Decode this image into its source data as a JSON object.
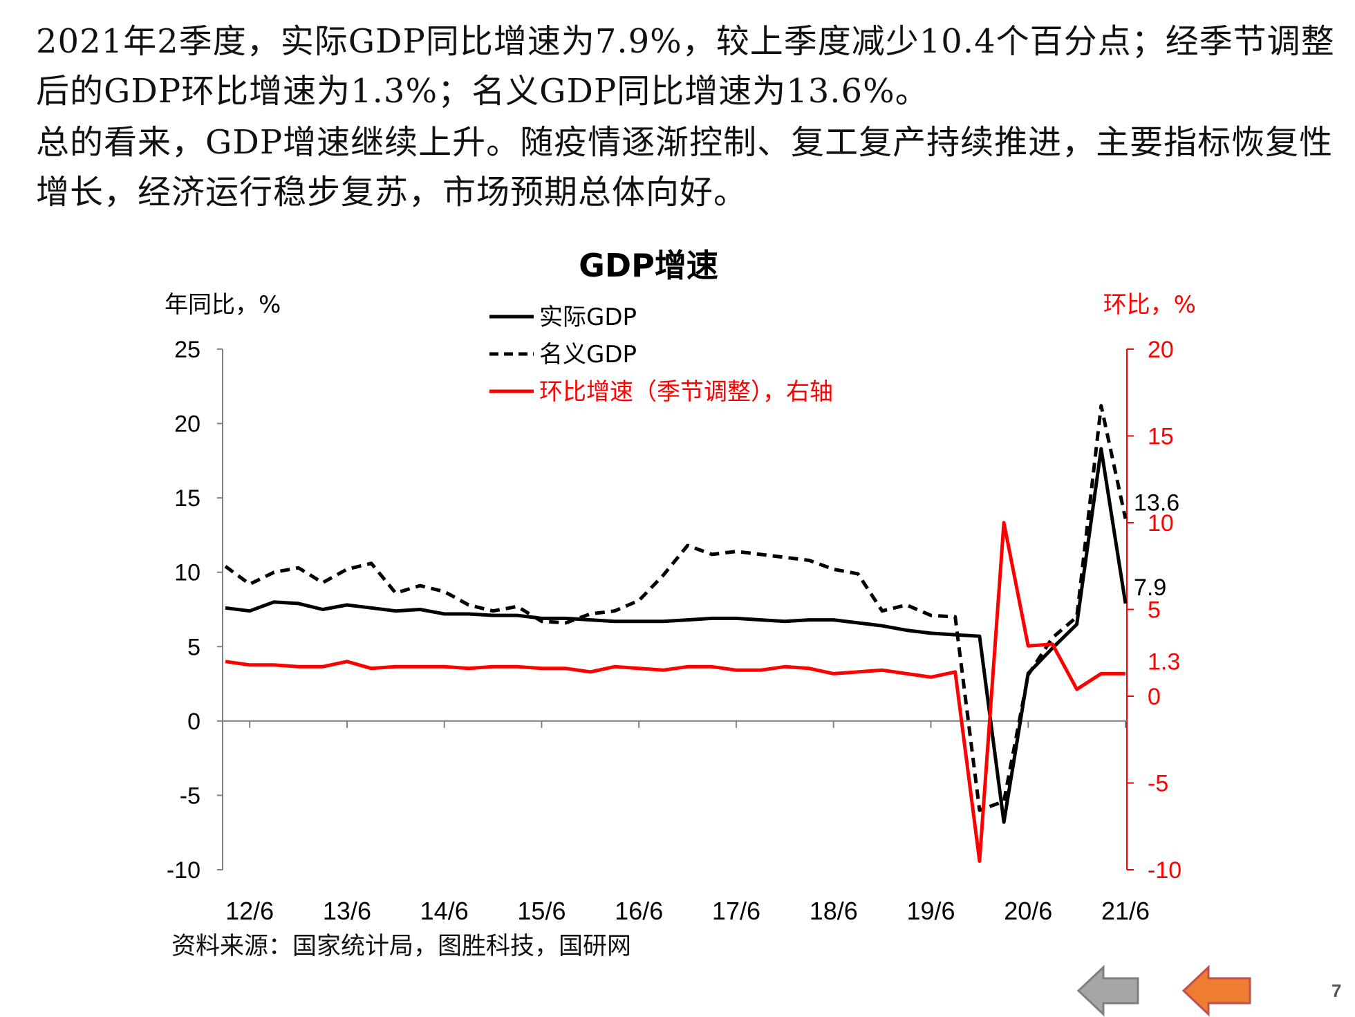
{
  "text": {
    "paragraph1": "2021年2季度，实际GDP同比增速为7.9%，较上季度减少10.4个百分点；经季节调整后的GDP环比增速为1.3%；名义GDP同比增速为13.6%。",
    "paragraph2": "总的看来，GDP增速继续上升。随疫情逐渐控制、复工复产持续推进，主要指标恢复性增长，经济运行稳步复苏，市场预期总体向好。",
    "source": "资料来源：国家统计局，图胜科技，国研网",
    "page_number": "7"
  },
  "navigation": {
    "prev_color": "#a6a6a6",
    "next_color": "#ee7d31"
  },
  "chart_data": {
    "type": "line",
    "title": "GDP增速",
    "ylabel_left": "年同比，%",
    "ylabel_right": "环比，%",
    "ylim_left": [
      -10,
      25
    ],
    "yticks_left": [
      25,
      20,
      15,
      10,
      5,
      0,
      -5,
      -10
    ],
    "ylim_right": [
      -10,
      20
    ],
    "yticks_right": [
      20,
      15,
      10,
      5,
      0,
      -5,
      -10
    ],
    "right_extra_labels": [
      "1.3"
    ],
    "right_extra_label_values": [
      1.3
    ],
    "xtick_labels": [
      "12/6",
      "13/6",
      "14/6",
      "15/6",
      "16/6",
      "17/6",
      "18/6",
      "19/6",
      "20/6",
      "21/6"
    ],
    "legend_position": "top-center",
    "grid": false,
    "colors": {
      "real": "#000000",
      "nominal": "#000000",
      "qoq": "#ff0000",
      "right_axis": "#ff0000"
    },
    "x": [
      "12/3",
      "12/6",
      "12/9",
      "12/12",
      "13/3",
      "13/6",
      "13/9",
      "13/12",
      "14/3",
      "14/6",
      "14/9",
      "14/12",
      "15/3",
      "15/6",
      "15/9",
      "15/12",
      "16/3",
      "16/6",
      "16/9",
      "16/12",
      "17/3",
      "17/6",
      "17/9",
      "17/12",
      "18/3",
      "18/6",
      "18/9",
      "18/12",
      "19/3",
      "19/6",
      "19/9",
      "19/12",
      "20/3",
      "20/6",
      "20/9",
      "20/12",
      "21/3",
      "21/6"
    ],
    "series": [
      {
        "name": "实际GDP",
        "axis": "left",
        "style": "solid",
        "values": [
          7.6,
          7.4,
          8.0,
          7.9,
          7.5,
          7.8,
          7.6,
          7.4,
          7.5,
          7.2,
          7.2,
          7.1,
          7.1,
          6.9,
          6.9,
          6.8,
          6.7,
          6.7,
          6.7,
          6.8,
          6.9,
          6.9,
          6.8,
          6.7,
          6.8,
          6.8,
          6.6,
          6.4,
          6.1,
          5.9,
          5.8,
          5.7,
          -6.8,
          3.2,
          4.9,
          6.5,
          18.3,
          7.9
        ]
      },
      {
        "name": "名义GDP",
        "axis": "left",
        "style": "dashed",
        "values": [
          10.4,
          9.2,
          10.0,
          10.3,
          9.3,
          10.2,
          10.6,
          8.6,
          9.1,
          8.7,
          7.8,
          7.4,
          7.7,
          6.7,
          6.6,
          7.2,
          7.4,
          8.1,
          9.8,
          11.8,
          11.2,
          11.4,
          11.2,
          11.0,
          10.8,
          10.2,
          9.9,
          7.4,
          7.8,
          7.1,
          7.0,
          -6.0,
          -5.4,
          3.1,
          5.6,
          7.0,
          21.2,
          13.6
        ]
      },
      {
        "name": "环比增速（季节调整），右轴",
        "axis": "right",
        "style": "solid",
        "values": [
          2.0,
          1.8,
          1.8,
          1.7,
          1.7,
          2.0,
          1.6,
          1.7,
          1.7,
          1.7,
          1.6,
          1.7,
          1.7,
          1.6,
          1.6,
          1.4,
          1.7,
          1.6,
          1.5,
          1.7,
          1.7,
          1.5,
          1.5,
          1.7,
          1.6,
          1.3,
          1.4,
          1.5,
          1.3,
          1.1,
          1.4,
          -9.5,
          10.0,
          2.9,
          3.0,
          0.4,
          1.3,
          1.3
        ]
      }
    ],
    "annotations": [
      {
        "text": "13.6",
        "series": 1,
        "index": 37
      },
      {
        "text": "7.9",
        "series": 0,
        "index": 37
      }
    ]
  }
}
